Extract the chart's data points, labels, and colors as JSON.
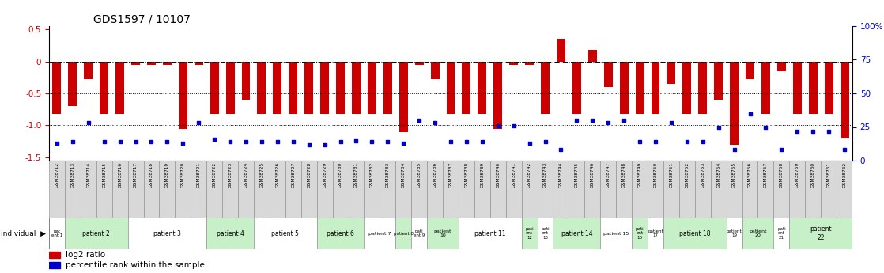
{
  "title": "GDS1597 / 10107",
  "gsm_ids": [
    "GSM38712",
    "GSM38713",
    "GSM38714",
    "GSM38715",
    "GSM38716",
    "GSM38717",
    "GSM38718",
    "GSM38719",
    "GSM38720",
    "GSM38721",
    "GSM38722",
    "GSM38723",
    "GSM38724",
    "GSM38725",
    "GSM38726",
    "GSM38727",
    "GSM38728",
    "GSM38729",
    "GSM38730",
    "GSM38731",
    "GSM38732",
    "GSM38733",
    "GSM38734",
    "GSM38735",
    "GSM38736",
    "GSM38737",
    "GSM38738",
    "GSM38739",
    "GSM38740",
    "GSM38741",
    "GSM38742",
    "GSM38743",
    "GSM38744",
    "GSM38745",
    "GSM38746",
    "GSM38747",
    "GSM38748",
    "GSM38749",
    "GSM38750",
    "GSM38751",
    "GSM38752",
    "GSM38753",
    "GSM38754",
    "GSM38755",
    "GSM38756",
    "GSM38757",
    "GSM38758",
    "GSM38759",
    "GSM38760",
    "GSM38761",
    "GSM38762"
  ],
  "log2_ratio": [
    -0.82,
    -0.7,
    -0.28,
    -0.82,
    -0.82,
    -0.05,
    -0.05,
    -0.05,
    -1.05,
    -0.05,
    -0.82,
    -0.82,
    -0.6,
    -0.82,
    -0.82,
    -0.82,
    -0.82,
    -0.82,
    -0.82,
    -0.82,
    -0.82,
    -0.82,
    -1.1,
    -0.05,
    -0.28,
    -0.82,
    -0.82,
    -0.82,
    -1.05,
    -0.05,
    -0.05,
    -0.82,
    0.35,
    -0.82,
    0.18,
    -0.4,
    -0.82,
    -0.82,
    -0.82,
    -0.35,
    -0.82,
    -0.82,
    -0.6,
    -1.3,
    -0.28,
    -0.82,
    -0.15,
    -0.82,
    -0.82,
    -0.82,
    -1.2
  ],
  "percentile_rank": [
    13,
    14,
    28,
    14,
    14,
    14,
    14,
    14,
    13,
    28,
    16,
    14,
    14,
    14,
    14,
    14,
    12,
    12,
    14,
    15,
    14,
    14,
    13,
    30,
    28,
    14,
    14,
    14,
    26,
    26,
    13,
    14,
    8,
    30,
    30,
    28,
    30,
    14,
    14,
    28,
    14,
    14,
    25,
    8,
    35,
    25,
    8,
    22,
    22,
    22,
    8
  ],
  "patients": [
    {
      "label": "pat\nent 1",
      "start": 0,
      "end": 1,
      "color": "#ffffff"
    },
    {
      "label": "patient 2",
      "start": 1,
      "end": 5,
      "color": "#c8f0c8"
    },
    {
      "label": "patient 3",
      "start": 5,
      "end": 10,
      "color": "#ffffff"
    },
    {
      "label": "patient 4",
      "start": 10,
      "end": 13,
      "color": "#c8f0c8"
    },
    {
      "label": "patient 5",
      "start": 13,
      "end": 17,
      "color": "#ffffff"
    },
    {
      "label": "patient 6",
      "start": 17,
      "end": 20,
      "color": "#c8f0c8"
    },
    {
      "label": "patient 7",
      "start": 20,
      "end": 22,
      "color": "#ffffff"
    },
    {
      "label": "patient 8",
      "start": 22,
      "end": 23,
      "color": "#c8f0c8"
    },
    {
      "label": "pati\nent 9",
      "start": 23,
      "end": 24,
      "color": "#ffffff"
    },
    {
      "label": "patient\n10",
      "start": 24,
      "end": 26,
      "color": "#c8f0c8"
    },
    {
      "label": "patient 11",
      "start": 26,
      "end": 30,
      "color": "#ffffff"
    },
    {
      "label": "pati\nent\n12",
      "start": 30,
      "end": 31,
      "color": "#c8f0c8"
    },
    {
      "label": "pati\nent\n13",
      "start": 31,
      "end": 32,
      "color": "#ffffff"
    },
    {
      "label": "patient 14",
      "start": 32,
      "end": 35,
      "color": "#c8f0c8"
    },
    {
      "label": "patient 15",
      "start": 35,
      "end": 37,
      "color": "#ffffff"
    },
    {
      "label": "pati\nent\n16",
      "start": 37,
      "end": 38,
      "color": "#c8f0c8"
    },
    {
      "label": "patient\n17",
      "start": 38,
      "end": 39,
      "color": "#ffffff"
    },
    {
      "label": "patient 18",
      "start": 39,
      "end": 43,
      "color": "#c8f0c8"
    },
    {
      "label": "patient\n19",
      "start": 43,
      "end": 44,
      "color": "#ffffff"
    },
    {
      "label": "patient\n20",
      "start": 44,
      "end": 46,
      "color": "#c8f0c8"
    },
    {
      "label": "pati\nent\n21",
      "start": 46,
      "end": 47,
      "color": "#ffffff"
    },
    {
      "label": "patient\n22",
      "start": 47,
      "end": 51,
      "color": "#c8f0c8"
    }
  ],
  "ylim": [
    -1.55,
    0.55
  ],
  "bar_color": "#cc0000",
  "dot_color": "#0000cc",
  "bg_color": "#ffffff"
}
